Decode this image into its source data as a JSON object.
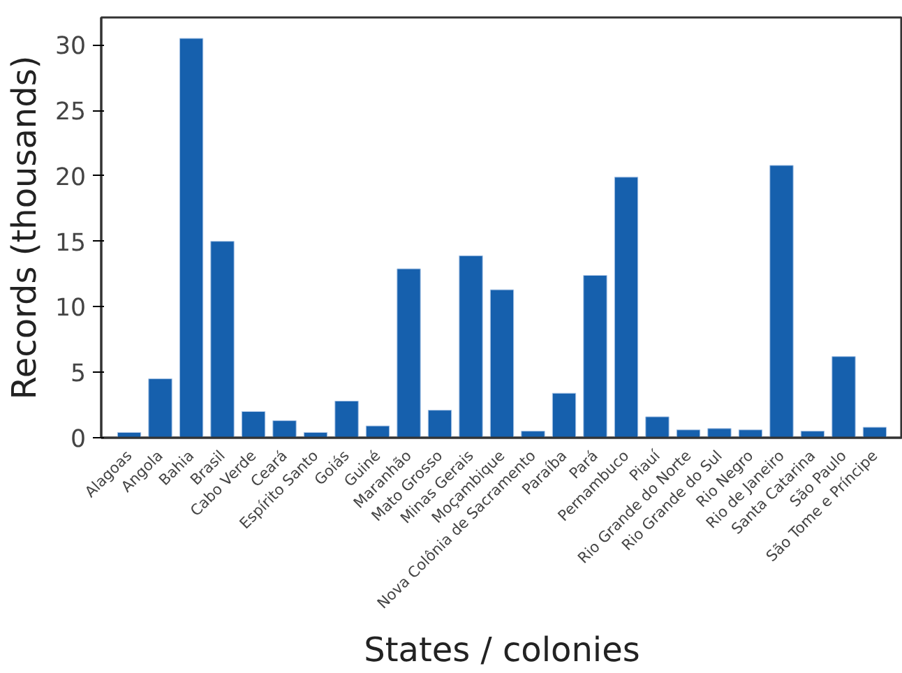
{
  "chart_data": {
    "type": "bar",
    "xlabel": "States / colonies",
    "ylabel": "Records (thousands)",
    "categories": [
      "Alagoas",
      "Angola",
      "Bahia",
      "Brasil",
      "Cabo Verde",
      "Ceará",
      "Espírito Santo",
      "Goiás",
      "Guiné",
      "Maranhão",
      "Mato Grosso",
      "Minas Gerais",
      "Moçambique",
      "Nova Colônia de Sacramento",
      "Paraíba",
      "Pará",
      "Pernambuco",
      "Piauí",
      "Rio Grande do Norte",
      "Rio Grande do Sul",
      "Rio Negro",
      "Rio de Janeiro",
      "Santa Catarina",
      "São Paulo",
      "São Tome e Príncipe"
    ],
    "values": [
      0.4,
      4.5,
      30.5,
      15.0,
      2.0,
      1.3,
      0.4,
      2.8,
      0.9,
      12.9,
      2.1,
      13.9,
      11.3,
      0.5,
      3.4,
      12.4,
      19.9,
      1.6,
      0.6,
      0.7,
      0.6,
      20.8,
      0.5,
      6.2,
      0.8
    ],
    "color": "#1660ad",
    "ylim": [
      0,
      32.1
    ],
    "yticks": [
      0,
      5,
      10,
      15,
      20,
      25,
      30
    ],
    "grid": false
  }
}
